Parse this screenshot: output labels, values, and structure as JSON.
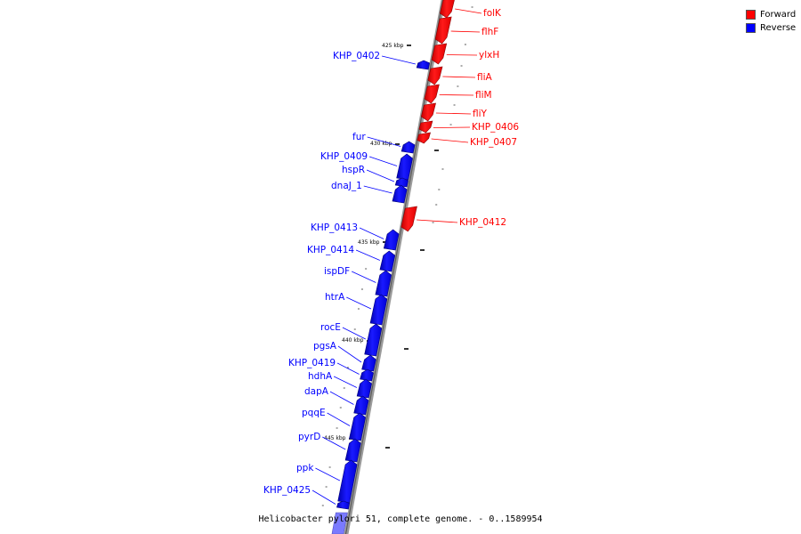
{
  "legend": {
    "forward_label": "Forward",
    "reverse_label": "Reverse",
    "forward_color": "#ff0000",
    "reverse_color": "#0000ff"
  },
  "footer": {
    "title": "Helicobacter pylori 51, complete genome. - 0..1589954"
  },
  "kbp_markers": [
    "425 kbp",
    "430 kbp",
    "435 kbp",
    "440 kbp",
    "445 kbp"
  ],
  "genes": {
    "forward": [
      "folK",
      "flhF",
      "ylxH",
      "fliA",
      "fliM",
      "fliY",
      "KHP_0406",
      "KHP_0407",
      "KHP_0412"
    ],
    "reverse": [
      "KHP_0402",
      "fur",
      "KHP_0409",
      "hspR",
      "dnaJ_1",
      "KHP_0413",
      "KHP_0414",
      "ispDF",
      "htrA",
      "rocE",
      "pgsA",
      "KHP_0419",
      "hdhA",
      "dapA",
      "pqqE",
      "pyrD",
      "ppk",
      "KHP_0425"
    ]
  }
}
